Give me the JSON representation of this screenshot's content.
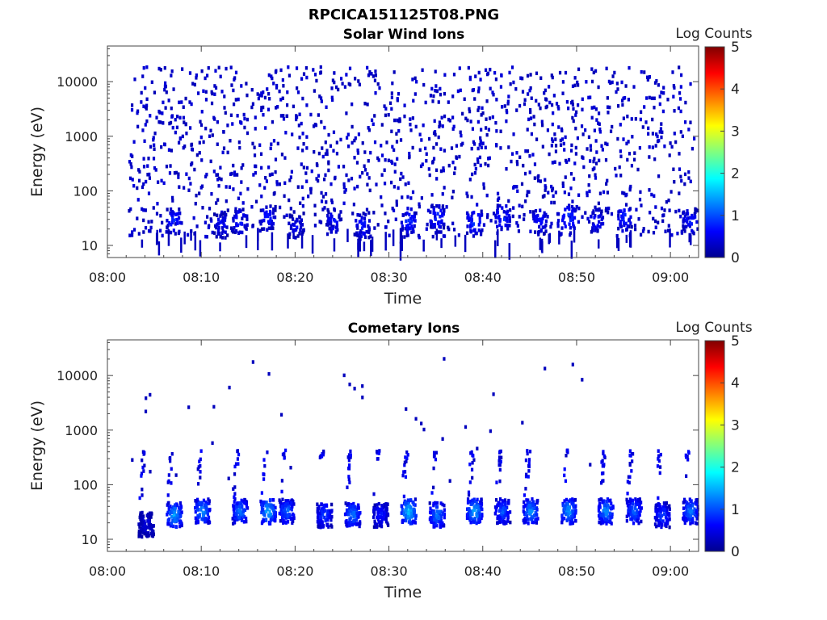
{
  "figure": {
    "title": "RPCICA151125T08.PNG"
  },
  "chart_data": [
    {
      "type": "heatmap",
      "title": "Solar Wind Ions",
      "xlabel": "Time",
      "ylabel": "Energy (eV)",
      "x_ticks": [
        "08:00",
        "08:10",
        "08:20",
        "08:30",
        "08:40",
        "08:50",
        "09:00"
      ],
      "y_ticks": [
        "10",
        "100",
        "1000",
        "10000"
      ],
      "y_scale": "log",
      "xlim": [
        "08:00",
        "09:03"
      ],
      "ylim": [
        6,
        45000
      ],
      "colorbar": {
        "label": "Log Counts",
        "ticks": [
          "0",
          "1",
          "2",
          "3",
          "4",
          "5"
        ],
        "range": [
          0,
          5
        ],
        "colormap": "jet"
      },
      "notes_visible": "Sparse single-count pixels from ~15 eV to ~20000 eV throughout; denser periodic patches of log counts ~0.5-1 near 20-40 eV.",
      "blobs": [
        [
          "08:07",
          30,
          0.9
        ],
        [
          "08:12",
          25,
          0.7
        ],
        [
          "08:14",
          30,
          0.8
        ],
        [
          "08:17",
          35,
          0.8
        ],
        [
          "08:20",
          25,
          0.6
        ],
        [
          "08:24",
          30,
          0.7
        ],
        [
          "08:27",
          25,
          0.8
        ],
        [
          "08:32",
          30,
          0.9
        ],
        [
          "08:35",
          35,
          0.9
        ],
        [
          "08:39",
          30,
          1.0
        ],
        [
          "08:42",
          35,
          0.9
        ],
        [
          "08:46",
          30,
          0.8
        ],
        [
          "08:49",
          35,
          1.0
        ],
        [
          "08:52",
          30,
          0.7
        ],
        [
          "08:55",
          35,
          0.9
        ],
        [
          "09:02",
          30,
          0.8
        ]
      ]
    },
    {
      "type": "heatmap",
      "title": "Cometary Ions",
      "xlabel": "Time",
      "ylabel": "Energy (eV)",
      "x_ticks": [
        "08:00",
        "08:10",
        "08:20",
        "08:30",
        "08:40",
        "08:50",
        "09:00"
      ],
      "y_ticks": [
        "10",
        "100",
        "1000",
        "10000"
      ],
      "y_scale": "log",
      "xlim": [
        "08:00",
        "09:03"
      ],
      "ylim": [
        6,
        45000
      ],
      "colorbar": {
        "label": "Log Counts",
        "ticks": [
          "0",
          "1",
          "2",
          "3",
          "4",
          "5"
        ],
        "range": [
          0,
          5
        ],
        "colormap": "jet"
      },
      "notes_visible": "Periodic bursts of cometary ions at ~20-40 eV with log counts up to ~1.8, extending upward to a few hundred eV; isolated counts up to ~25000 eV.",
      "blobs": [
        [
          "08:04",
          20,
          0.5
        ],
        [
          "08:07",
          30,
          1.5
        ],
        [
          "08:10",
          35,
          1.4
        ],
        [
          "08:14",
          35,
          1.3
        ],
        [
          "08:17",
          35,
          1.6
        ],
        [
          "08:19",
          35,
          1.2
        ],
        [
          "08:23",
          30,
          1.0
        ],
        [
          "08:26",
          30,
          1.3
        ],
        [
          "08:29",
          30,
          0.8
        ],
        [
          "08:32",
          35,
          1.7
        ],
        [
          "08:35",
          30,
          1.3
        ],
        [
          "08:39",
          35,
          1.6
        ],
        [
          "08:42",
          35,
          1.1
        ],
        [
          "08:45",
          35,
          1.4
        ],
        [
          "08:49",
          35,
          1.5
        ],
        [
          "08:53",
          35,
          1.4
        ],
        [
          "08:56",
          35,
          1.2
        ],
        [
          "08:59",
          30,
          1.0
        ],
        [
          "09:02",
          35,
          1.3
        ]
      ]
    }
  ]
}
